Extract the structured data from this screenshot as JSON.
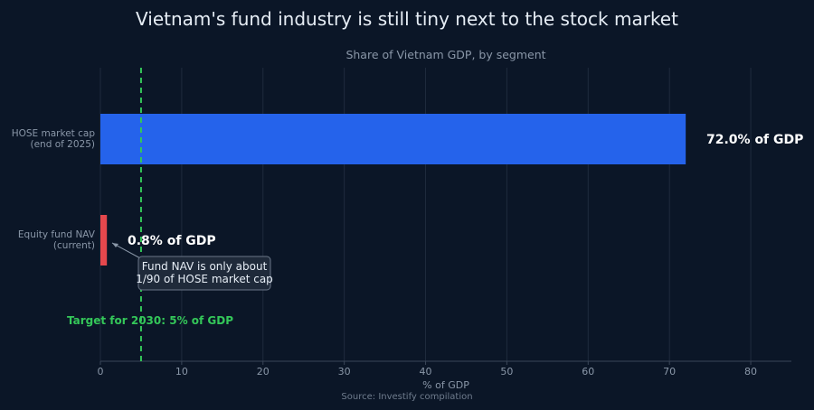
{
  "chart_data": {
    "type": "bar",
    "orientation": "horizontal",
    "title": "Vietnam's fund industry is still tiny next to the stock market",
    "subtitle": "Share of Vietnam GDP, by segment",
    "xlabel": "% of GDP",
    "ylabel": "",
    "xlim": [
      0,
      85
    ],
    "x_ticks": [
      0,
      10,
      20,
      30,
      40,
      50,
      60,
      70,
      80
    ],
    "grid": true,
    "legend": "none",
    "categories": [
      [
        "HOSE market cap",
        "(end of 2025)"
      ],
      [
        "Equity fund NAV",
        "(current)"
      ]
    ],
    "values": [
      72.0,
      0.8
    ],
    "data_labels": [
      "72.0% of GDP",
      "0.8% of GDP"
    ],
    "bar_colors": [
      "#2563eb",
      "#e5484d"
    ],
    "reference_line": {
      "value": 5,
      "label": "Target for 2030: 5% of GDP",
      "color": "#34c759"
    },
    "annotation": {
      "lines": [
        "Fund NAV is only about",
        "1/90 of HOSE market cap"
      ],
      "points_to_category": 1
    },
    "source": "Source: Investify compilation"
  },
  "colors": {
    "background": "#0b1627",
    "grid": "#1f2b3d",
    "axis_text": "#8a97a8",
    "title_text": "#e6edf5"
  }
}
